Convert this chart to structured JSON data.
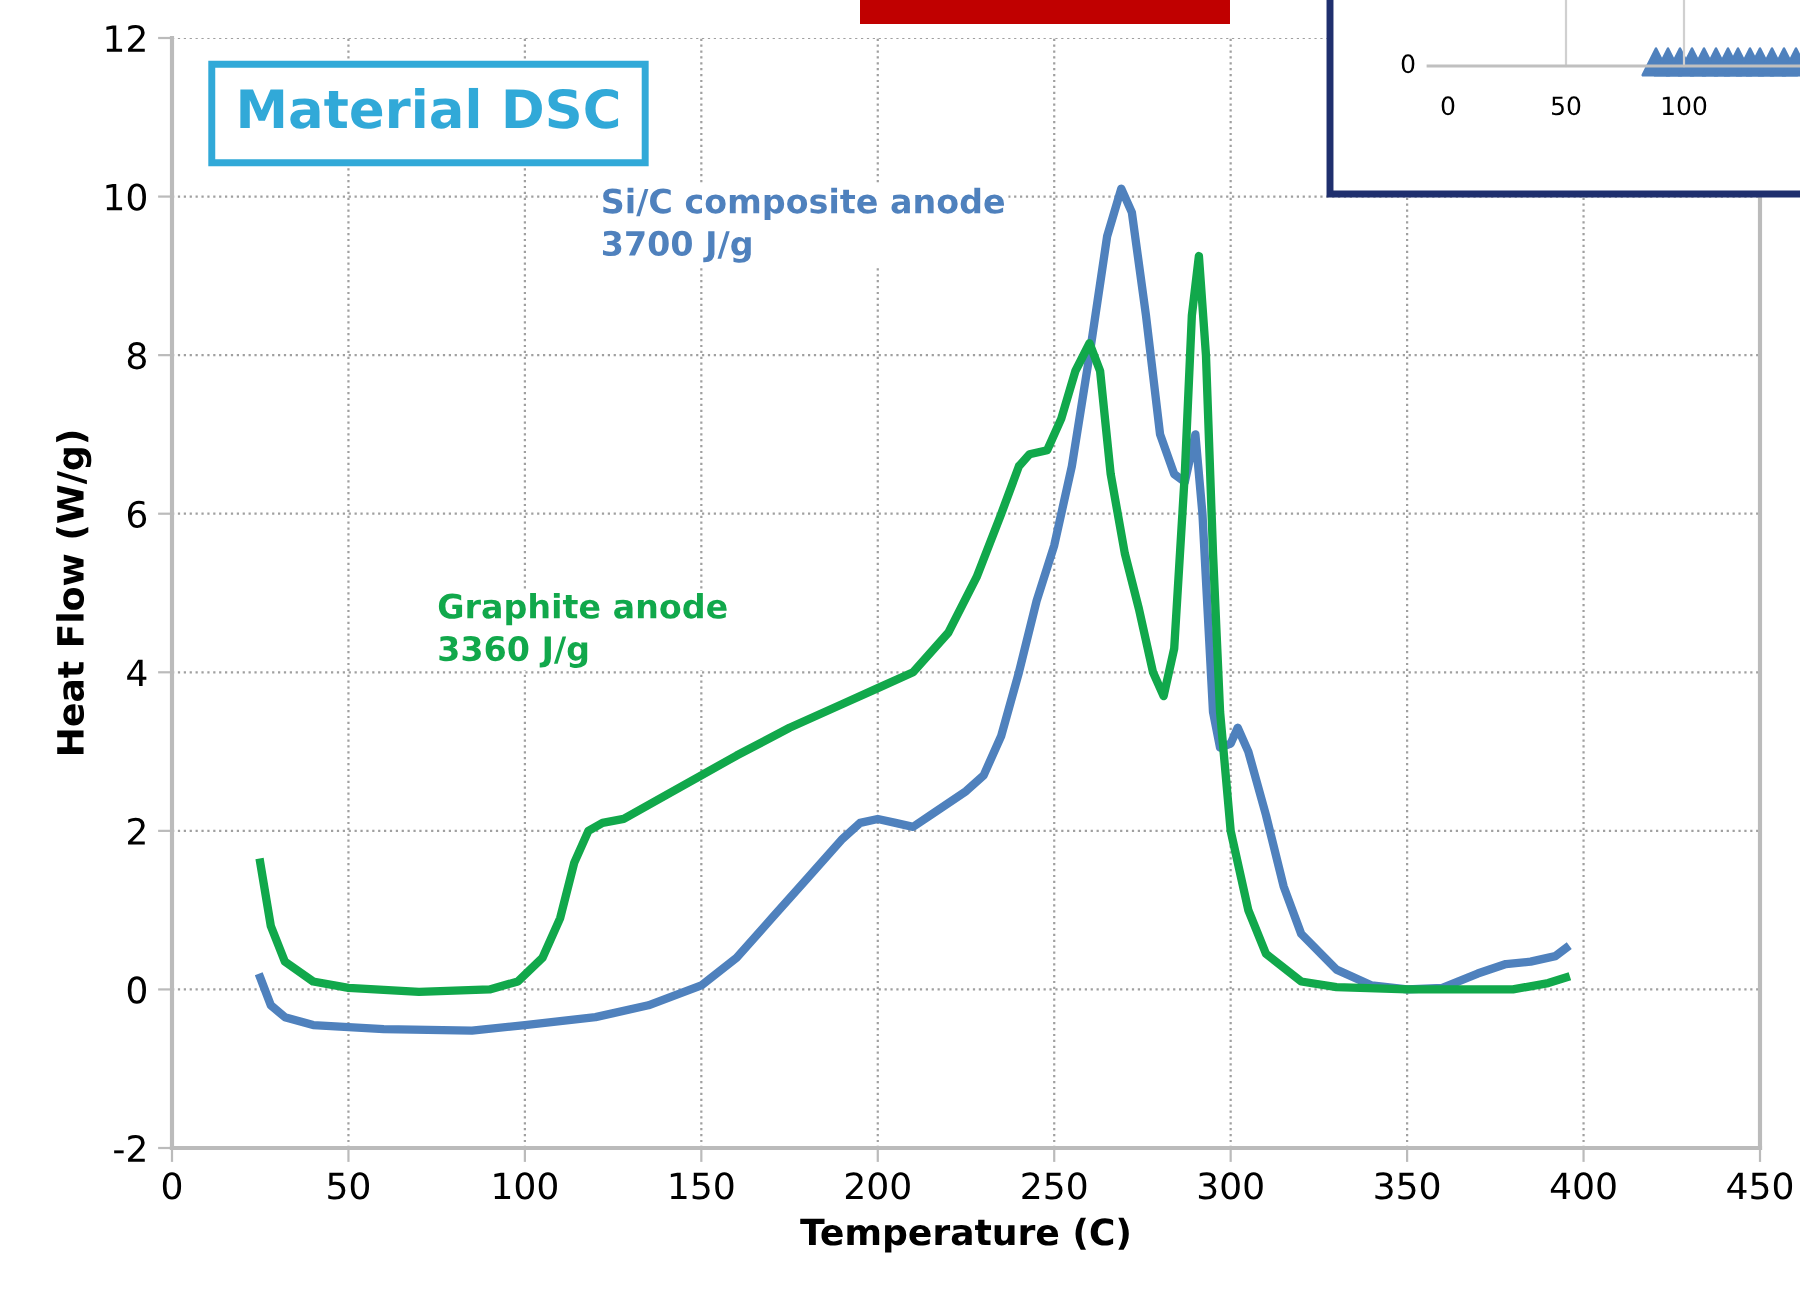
{
  "chart_data": [
    {
      "type": "line",
      "title": "Material DSC",
      "xlabel": "Temperature (C)",
      "ylabel": "Heat Flow (W/g)",
      "xlim": [
        0,
        450
      ],
      "xticks": [
        0,
        50,
        100,
        150,
        200,
        250,
        300,
        350,
        400,
        450
      ],
      "ylim": [
        -2,
        12
      ],
      "yticks": [
        -2,
        0,
        2,
        4,
        6,
        8,
        10,
        12
      ],
      "grid": true,
      "legend": false,
      "marker": "none",
      "line_style": "solid",
      "annotations": [
        "3700 J/g",
        "3360 J/g"
      ],
      "series": [
        {
          "name": "Si/C composite anode",
          "color": "#4f81bd",
          "x": [
            25,
            28,
            32,
            40,
            60,
            85,
            100,
            120,
            135,
            150,
            160,
            170,
            180,
            190,
            195,
            200,
            205,
            210,
            215,
            225,
            230,
            235,
            240,
            245,
            250,
            255,
            260,
            265,
            269,
            272,
            276,
            280,
            284,
            287,
            290,
            292,
            295,
            297,
            300,
            302,
            305,
            310,
            315,
            320,
            330,
            340,
            350,
            360,
            370,
            378,
            385,
            392,
            395
          ],
          "values": [
            0.15,
            -0.2,
            -0.35,
            -0.45,
            -0.5,
            -0.52,
            -0.45,
            -0.35,
            -0.2,
            0.05,
            0.4,
            0.9,
            1.4,
            1.9,
            2.1,
            2.15,
            2.1,
            2.05,
            2.2,
            2.5,
            2.7,
            3.2,
            4.0,
            4.9,
            5.6,
            6.6,
            8.0,
            9.5,
            10.1,
            9.8,
            8.5,
            7.0,
            6.5,
            6.4,
            7.0,
            6.0,
            3.5,
            3.05,
            3.1,
            3.3,
            3.0,
            2.2,
            1.3,
            0.7,
            0.25,
            0.05,
            0.0,
            0.02,
            0.2,
            0.32,
            0.35,
            0.42,
            0.52
          ]
        },
        {
          "name": "Graphite anode",
          "color": "#11a84b",
          "x": [
            25,
            28,
            32,
            40,
            50,
            70,
            90,
            98,
            105,
            110,
            114,
            118,
            122,
            128,
            140,
            150,
            160,
            175,
            190,
            200,
            210,
            220,
            228,
            235,
            240,
            243,
            248,
            252,
            256,
            260,
            263,
            266,
            270,
            274,
            278,
            281,
            284,
            287,
            289,
            291,
            293,
            295,
            297,
            300,
            305,
            310,
            320,
            330,
            350,
            380,
            390,
            395
          ],
          "values": [
            1.6,
            0.8,
            0.35,
            0.1,
            0.02,
            -0.03,
            0.0,
            0.1,
            0.4,
            0.9,
            1.6,
            2.0,
            2.1,
            2.15,
            2.45,
            2.7,
            2.95,
            3.3,
            3.6,
            3.8,
            4.0,
            4.5,
            5.2,
            6.0,
            6.6,
            6.75,
            6.8,
            7.2,
            7.8,
            8.15,
            7.8,
            6.5,
            5.5,
            4.8,
            4.0,
            3.7,
            4.3,
            6.5,
            8.5,
            9.25,
            8.0,
            5.5,
            3.5,
            2.0,
            1.0,
            0.45,
            0.1,
            0.03,
            0.0,
            0.0,
            0.08,
            0.15
          ]
        }
      ]
    },
    {
      "type": "other",
      "annotations": [
        "0",
        "0",
        "50",
        "100"
      ]
    }
  ]
}
